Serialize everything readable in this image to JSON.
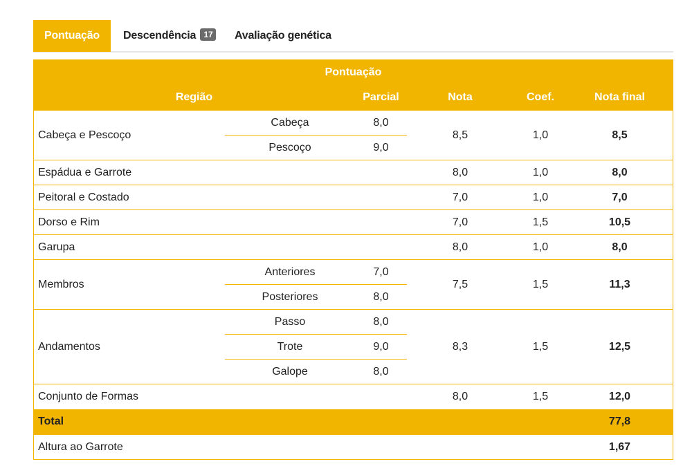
{
  "tabs": [
    {
      "label": "Pontuação",
      "active": true
    },
    {
      "label": "Descendência",
      "badge": "17"
    },
    {
      "label": "Avaliação genética"
    }
  ],
  "table": {
    "group_header": "Pontuação",
    "columns": {
      "regiao": "Região",
      "parcial": "Parcial",
      "nota": "Nota",
      "coef": "Coef.",
      "nota_final": "Nota final"
    },
    "rows": [
      {
        "regiao": "Cabeça e Pescoço",
        "subs": [
          {
            "label": "Cabeça",
            "parcial": "8,0"
          },
          {
            "label": "Pescoço",
            "parcial": "9,0"
          }
        ],
        "nota": "8,5",
        "coef": "1,0",
        "final": "8,5"
      },
      {
        "regiao": "Espádua e Garrote",
        "nota": "8,0",
        "coef": "1,0",
        "final": "8,0"
      },
      {
        "regiao": "Peitoral e Costado",
        "nota": "7,0",
        "coef": "1,0",
        "final": "7,0"
      },
      {
        "regiao": "Dorso e Rim",
        "nota": "7,0",
        "coef": "1,5",
        "final": "10,5"
      },
      {
        "regiao": "Garupa",
        "nota": "8,0",
        "coef": "1,0",
        "final": "8,0"
      },
      {
        "regiao": "Membros",
        "subs": [
          {
            "label": "Anteriores",
            "parcial": "7,0"
          },
          {
            "label": "Posteriores",
            "parcial": "8,0"
          }
        ],
        "nota": "7,5",
        "coef": "1,5",
        "final": "11,3"
      },
      {
        "regiao": "Andamentos",
        "subs": [
          {
            "label": "Passo",
            "parcial": "8,0"
          },
          {
            "label": "Trote",
            "parcial": "9,0"
          },
          {
            "label": "Galope",
            "parcial": "8,0"
          }
        ],
        "nota": "8,3",
        "coef": "1,5",
        "final": "12,5"
      },
      {
        "regiao": "Conjunto de Formas",
        "nota": "8,0",
        "coef": "1,5",
        "final": "12,0"
      }
    ],
    "total": {
      "label": "Total",
      "value": "77,8"
    },
    "altura": {
      "label": "Altura ao Garrote",
      "value": "1,67"
    }
  },
  "colors": {
    "accent": "#f1b500",
    "badge": "#6b6b6b"
  }
}
